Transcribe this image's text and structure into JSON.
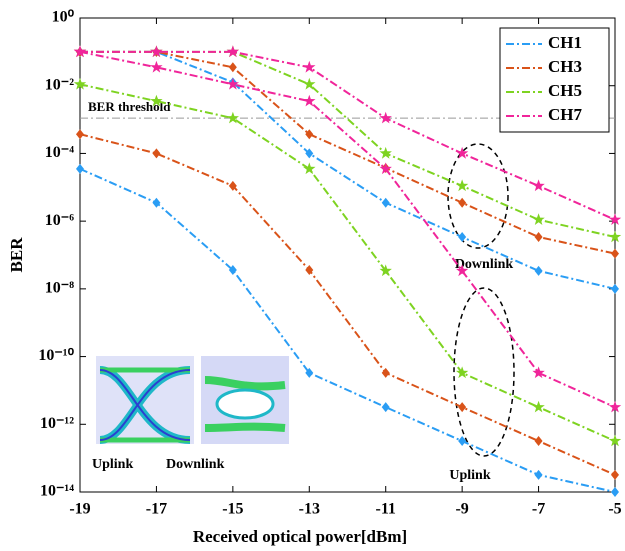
{
  "chart_data": {
    "type": "line",
    "xlabel": "Received optical power[dBm]",
    "ylabel": "BER",
    "x": [
      -19,
      -17,
      -15,
      -13,
      -11,
      -9,
      -7,
      -5
    ],
    "xlim": [
      -19,
      -5
    ],
    "xticks": [
      -19,
      -17,
      -15,
      -13,
      -11,
      -9,
      -7,
      -5
    ],
    "ylim": [
      1e-14,
      1
    ],
    "log_y": true,
    "yticks": [
      {
        "value": 1,
        "label": "10⁰"
      },
      {
        "value": 0.01,
        "label": "10⁻²"
      },
      {
        "value": 0.0001,
        "label": "10⁻⁴"
      },
      {
        "value": 1e-06,
        "label": "10⁻⁶"
      },
      {
        "value": 1e-08,
        "label": "10⁻⁸"
      },
      {
        "value": 1e-10,
        "label": "10⁻¹⁰"
      },
      {
        "value": 1e-12,
        "label": "10⁻¹²"
      },
      {
        "value": 1e-14,
        "label": "10⁻¹⁴"
      }
    ],
    "legend": "upper right",
    "series": [
      {
        "name": "CH1",
        "color": "#2a9df4",
        "marker": "diamond",
        "downlink": [
          0.1,
          0.1,
          0.0126,
          0.0001,
          3.5e-06,
          3.4e-07,
          3.4e-08,
          1e-08
        ],
        "uplink": [
          3.5e-05,
          3.5e-06,
          3.6e-08,
          3.3e-11,
          3.2e-12,
          3.2e-13,
          3.2e-14,
          1e-14
        ]
      },
      {
        "name": "CH3",
        "color": "#d95319",
        "marker": "diamond",
        "downlink": [
          0.1,
          0.1,
          0.035,
          0.00037,
          3.7e-05,
          3.5e-06,
          3.4e-07,
          1.1e-07
        ],
        "uplink": [
          0.00037,
          0.0001,
          1.1e-05,
          3.6e-08,
          3.3e-11,
          3.2e-12,
          3.2e-13,
          3.2e-14
        ]
      },
      {
        "name": "CH5",
        "color": "#7ed321",
        "marker": "star",
        "downlink": [
          0.1,
          0.1,
          0.1,
          0.011,
          0.0001,
          1.1e-05,
          1.1e-06,
          3.4e-07
        ],
        "uplink": [
          0.011,
          0.0035,
          0.0011,
          3.5e-05,
          3.4e-08,
          3.3e-11,
          3.2e-12,
          3.2e-13
        ]
      },
      {
        "name": "CH7",
        "color": "#f0259a",
        "marker": "star",
        "downlink": [
          0.1,
          0.1,
          0.1,
          0.035,
          0.0011,
          0.0001,
          1.1e-05,
          1.1e-06
        ],
        "uplink": [
          0.1,
          0.035,
          0.011,
          0.0035,
          3.5e-05,
          3.4e-08,
          3.3e-11,
          3.2e-12
        ]
      }
    ],
    "threshold": {
      "value": 0.0011,
      "label": "BER threshold",
      "color": "#999999"
    },
    "annotations": {
      "downlink": "Downlink",
      "uplink": "Uplink",
      "eye_uplink": "Uplink",
      "eye_downlink": "Downlink"
    }
  }
}
